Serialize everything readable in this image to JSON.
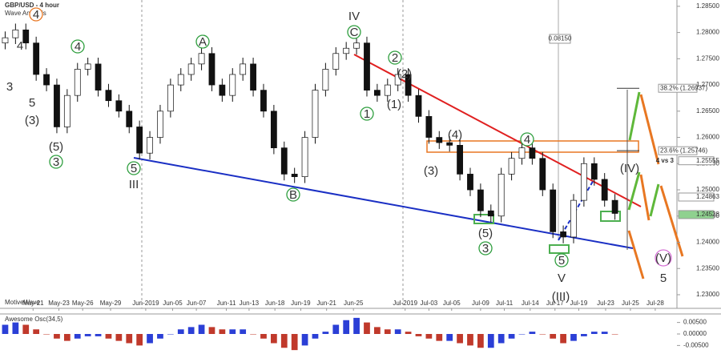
{
  "chart_data": {
    "type": "candlestick",
    "title": "GBP/USD - 4 hour",
    "subtitle": "Wave Analysis",
    "watermark": "MotiveWave",
    "colors": {
      "up": "#ffffff",
      "down": "#111111",
      "wick": "#111111"
    },
    "xlim": [
      -0.5,
      65
    ],
    "xticks": [
      {
        "value": 2.7,
        "label": "May-21"
      },
      {
        "value": 5.2,
        "label": "May-23"
      },
      {
        "value": 7.5,
        "label": "May-26"
      },
      {
        "value": 10.2,
        "label": "May-29"
      },
      {
        "value": 13.6,
        "label": "Jun-2019"
      },
      {
        "value": 16.2,
        "label": "Jun-05"
      },
      {
        "value": 18.5,
        "label": "Jun-07"
      },
      {
        "value": 21.4,
        "label": "Jun-11"
      },
      {
        "value": 23.6,
        "label": "Jun-13"
      },
      {
        "value": 26.1,
        "label": "Jun-18"
      },
      {
        "value": 28.6,
        "label": "Jun-19"
      },
      {
        "value": 31.1,
        "label": "Jun-21"
      },
      {
        "value": 33.7,
        "label": "Jun-25"
      },
      {
        "value": 38.7,
        "label": "Jul-2019"
      },
      {
        "value": 41,
        "label": "Jul-03"
      },
      {
        "value": 43.2,
        "label": "Jul-05"
      },
      {
        "value": 46,
        "label": "Jul-09"
      },
      {
        "value": 48.3,
        "label": "Jul-11"
      },
      {
        "value": 50.8,
        "label": "Jul-14"
      },
      {
        "value": 53.2,
        "label": "Jul-17"
      },
      {
        "value": 55.5,
        "label": "Jul-19"
      },
      {
        "value": 58.1,
        "label": "Jul-23"
      },
      {
        "value": 60.5,
        "label": "Jul-25"
      },
      {
        "value": 62.9,
        "label": "Jul-28"
      }
    ],
    "ylim": [
      1.2274,
      1.2862
    ],
    "yticks": [
      {
        "value": 1.285,
        "label": "1.28500"
      },
      {
        "value": 1.28,
        "label": "1.28000"
      },
      {
        "value": 1.275,
        "label": "1.27500"
      },
      {
        "value": 1.27,
        "label": "1.27000"
      },
      {
        "value": 1.265,
        "label": "1.26500"
      },
      {
        "value": 1.26,
        "label": "1.26000"
      },
      {
        "value": 1.255,
        "label": "1.25500"
      },
      {
        "value": 1.25,
        "label": "1.25000"
      },
      {
        "value": 1.245,
        "label": "1.24500"
      },
      {
        "value": 1.24,
        "label": "1.24000"
      },
      {
        "value": 1.235,
        "label": "1.23500"
      },
      {
        "value": 1.23,
        "label": "1.23000"
      }
    ],
    "open": [
      1.278,
      1.279,
      1.2805,
      1.278,
      1.272,
      1.27,
      1.262,
      1.268,
      1.273,
      1.274,
      1.269,
      1.267,
      1.265,
      1.262,
      1.257,
      1.26,
      1.265,
      1.27,
      1.272,
      1.274,
      1.276,
      1.27,
      1.268,
      1.272,
      1.274,
      1.269,
      1.265,
      1.258,
      1.253,
      1.2525,
      1.26,
      1.269,
      1.273,
      1.276,
      1.277,
      1.278,
      1.269,
      1.268,
      1.27,
      1.272,
      1.268,
      1.264,
      1.26,
      1.259,
      1.2585,
      1.253,
      1.25,
      1.246,
      1.245,
      1.253,
      1.256,
      1.258,
      1.256,
      1.25,
      1.242,
      1.241,
      1.248,
      1.255,
      1.252,
      1.248
    ],
    "high": [
      1.2802,
      1.2817,
      1.2817,
      1.2792,
      1.2732,
      1.2712,
      1.2692,
      1.2742,
      1.2752,
      1.2752,
      1.2702,
      1.2682,
      1.2662,
      1.2632,
      1.2612,
      1.2662,
      1.2712,
      1.2732,
      1.2752,
      1.2772,
      1.2772,
      1.2712,
      1.2732,
      1.2752,
      1.2752,
      1.2702,
      1.2662,
      1.2592,
      1.2542,
      1.2612,
      1.2702,
      1.2742,
      1.2772,
      1.2782,
      1.2792,
      1.2792,
      1.2702,
      1.2712,
      1.2732,
      1.2732,
      1.2692,
      1.2652,
      1.2612,
      1.2602,
      1.2597,
      1.2542,
      1.2512,
      1.2472,
      1.2542,
      1.2572,
      1.2592,
      1.2592,
      1.2572,
      1.2512,
      1.2432,
      1.2492,
      1.2562,
      1.2562,
      1.2532,
      1.2492
    ],
    "low": [
      1.2768,
      1.2778,
      1.2768,
      1.2708,
      1.2688,
      1.2608,
      1.2608,
      1.2668,
      1.2718,
      1.2678,
      1.2658,
      1.2638,
      1.2608,
      1.2558,
      1.2558,
      1.2588,
      1.2638,
      1.2688,
      1.2708,
      1.2728,
      1.2688,
      1.2668,
      1.2668,
      1.2708,
      1.2678,
      1.2638,
      1.2568,
      1.2518,
      1.2513,
      1.2513,
      1.2588,
      1.2678,
      1.2718,
      1.2748,
      1.2758,
      1.2678,
      1.2668,
      1.2668,
      1.2688,
      1.2668,
      1.2628,
      1.2588,
      1.2578,
      1.2573,
      1.2518,
      1.2488,
      1.2448,
      1.2438,
      1.2438,
      1.2518,
      1.2548,
      1.2548,
      1.2488,
      1.2408,
      1.2398,
      1.2398,
      1.2468,
      1.2508,
      1.2468,
      1.2443
    ],
    "close": [
      1.279,
      1.2805,
      1.278,
      1.272,
      1.27,
      1.262,
      1.268,
      1.273,
      1.274,
      1.269,
      1.267,
      1.265,
      1.262,
      1.257,
      1.26,
      1.265,
      1.27,
      1.272,
      1.274,
      1.276,
      1.27,
      1.268,
      1.272,
      1.274,
      1.269,
      1.265,
      1.258,
      1.253,
      1.2525,
      1.26,
      1.269,
      1.273,
      1.276,
      1.277,
      1.278,
      1.269,
      1.268,
      1.27,
      1.272,
      1.268,
      1.264,
      1.26,
      1.259,
      1.2585,
      1.253,
      1.25,
      1.246,
      1.245,
      1.253,
      1.256,
      1.258,
      1.256,
      1.25,
      1.242,
      1.241,
      1.248,
      1.255,
      1.252,
      1.248,
      1.2455
    ],
    "fib_levels": [
      {
        "value": 1.26937,
        "label": "38.2% (1.26937)"
      },
      {
        "value": 1.25746,
        "label": "23.6% (1.25746)"
      }
    ],
    "price_marks": [
      {
        "value": 1.25555,
        "label": "1.25555"
      },
      {
        "value": 1.24863,
        "label": "1.24863"
      },
      {
        "value": 1.24528,
        "label": "1.24528"
      }
    ],
    "notes": [
      "4 vs 3",
      "0.08150"
    ],
    "wave_labels": [
      {
        "text": "4",
        "color": "#e87722",
        "circled": true
      },
      {
        "text": "4",
        "color": "#8b1a1a",
        "circled": false
      },
      {
        "text": "3",
        "color": "#8b1a1a",
        "circled": false
      },
      {
        "text": "5",
        "color": "#8b1a1a",
        "circled": false
      },
      {
        "text": "(3)",
        "color": "#e87722",
        "circled": false
      },
      {
        "text": "4",
        "color": "#2e9e3e",
        "circled": true
      },
      {
        "text": "(5)",
        "color": "#e87722",
        "circled": false
      },
      {
        "text": "3",
        "color": "#2e9e3e",
        "circled": true
      },
      {
        "text": "5",
        "color": "#2e9e3e",
        "circled": true
      },
      {
        "text": "III",
        "color": "#2233bb",
        "circled": false
      },
      {
        "text": "A",
        "color": "#2e9e3e",
        "circled": true
      },
      {
        "text": "IV",
        "color": "#2233bb",
        "circled": false
      },
      {
        "text": "C",
        "color": "#2e9e3e",
        "circled": true
      },
      {
        "text": "B",
        "color": "#2e9e3e",
        "circled": true
      },
      {
        "text": "2",
        "color": "#2e9e3e",
        "circled": true
      },
      {
        "text": "(2)",
        "color": "#e87722",
        "circled": false
      },
      {
        "text": "1",
        "color": "#2e9e3e",
        "circled": true
      },
      {
        "text": "(1)",
        "color": "#e87722",
        "circled": false
      },
      {
        "text": "(4)",
        "color": "#e87722",
        "circled": false
      },
      {
        "text": "(3)",
        "color": "#e87722",
        "circled": false
      },
      {
        "text": "4",
        "color": "#2e9e3e",
        "circled": true
      },
      {
        "text": "(5)",
        "color": "#e87722",
        "circled": false
      },
      {
        "text": "3",
        "color": "#2e9e3e",
        "circled": true
      },
      {
        "text": "5",
        "color": "#2e9e3e",
        "circled": true
      },
      {
        "text": "V",
        "color": "#2233bb",
        "circled": false
      },
      {
        "text": "(III)",
        "color": "#6a1b9a",
        "circled": false
      },
      {
        "text": "(IV)",
        "color": "#6a1b9a",
        "circled": false
      },
      {
        "text": "(V)",
        "color": "#d46fd4",
        "circled": true
      },
      {
        "text": "5",
        "color": "#d46fd4",
        "circled": false
      }
    ],
    "oscillator": {
      "title": "Awesome Osc(34,5)",
      "colors": {
        "up": "#2b3fd6",
        "down": "#c0392b"
      },
      "ylim": [
        -0.008,
        0.008
      ],
      "yticks": [
        {
          "value": 0.005,
          "label": "0.00500"
        },
        {
          "value": 0,
          "label": "0.00000"
        },
        {
          "value": -0.005,
          "label": "-0.00500"
        }
      ],
      "values": [
        0.004,
        0.005,
        0.004,
        0.002,
        0,
        -0.002,
        -0.003,
        -0.002,
        -0.001,
        -0.001,
        -0.002,
        -0.003,
        -0.004,
        -0.005,
        -0.004,
        -0.002,
        0,
        0.002,
        0.003,
        0.004,
        0.003,
        0.002,
        0.002,
        0.002,
        0,
        -0.002,
        -0.004,
        -0.006,
        -0.007,
        -0.005,
        -0.002,
        0.001,
        0.004,
        0.006,
        0.007,
        0.005,
        0.003,
        0.002,
        0.002,
        0.001,
        -0.001,
        -0.002,
        -0.003,
        -0.003,
        -0.004,
        -0.005,
        -0.006,
        -0.006,
        -0.004,
        -0.002,
        0,
        0.001,
        0,
        -0.002,
        -0.004,
        -0.003,
        -0.001,
        0.001,
        0.001,
        0
      ]
    }
  }
}
